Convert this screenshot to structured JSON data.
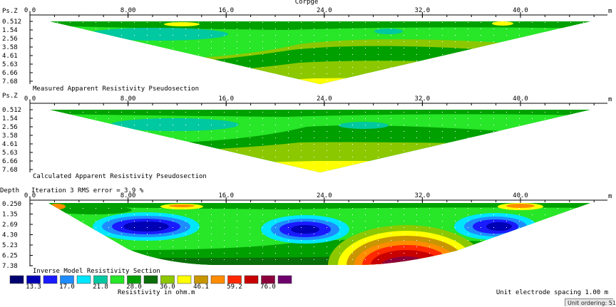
{
  "header_title": "Corрge",
  "x_unit": "m",
  "x_ticks": [
    "0.0",
    "8.00",
    "16.0",
    "24.0",
    "32.0",
    "40.0"
  ],
  "panels": [
    {
      "id": "measured",
      "y_label": "Ps.Z",
      "y_ticks": [
        "0.512",
        "1.54",
        "2.56",
        "3.58",
        "4.61",
        "5.63",
        "6.66",
        "7.68"
      ],
      "title": "Measured Apparent Resistivity Pseudosection"
    },
    {
      "id": "calculated",
      "y_label": "Ps.Z",
      "y_ticks": [
        "0.512",
        "1.54",
        "2.56",
        "3.58",
        "4.61",
        "5.63",
        "6.66",
        "7.68"
      ],
      "title": "Calculated Apparent Resistivity Pseudosection"
    },
    {
      "id": "inverse",
      "y_label": "Depth",
      "iteration_text": "Iteration 3 RMS error = 3.9 %",
      "y_ticks": [
        "0.250",
        "1.35",
        "2.69",
        "4.30",
        "5.23",
        "6.25",
        "7.38"
      ],
      "title": "Inverse Model Resistivity Section"
    }
  ],
  "legend": {
    "colors": [
      "#00006e",
      "#0000b4",
      "#1a1aff",
      "#1e8cff",
      "#00e6ff",
      "#00c8a0",
      "#28e628",
      "#00a000",
      "#0a6e0a",
      "#8cc800",
      "#ffff00",
      "#c89600",
      "#ff8c00",
      "#ff2800",
      "#c80000",
      "#8c003c",
      "#6e006e"
    ],
    "labels": [
      "13.3",
      "17.0",
      "21.8",
      "28.0",
      "36.0",
      "46.1",
      "59.2",
      "76.0"
    ],
    "unit_label": "Resistivity in ohm.m"
  },
  "spacing_label": "Unit electrode spacing 1.00 m",
  "status_text": "Unit ordering: 51"
}
